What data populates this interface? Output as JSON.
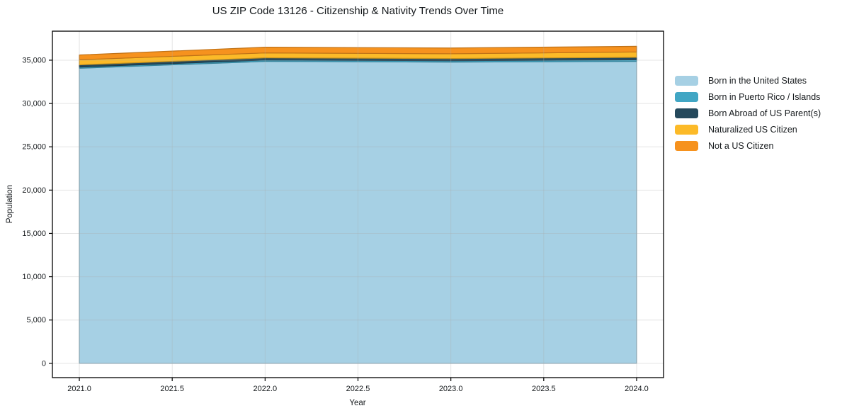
{
  "chart_data": {
    "type": "area",
    "stacked": true,
    "title": "US ZIP Code 13126 - Citizenship & Nativity Trends Over Time",
    "xlabel": "Year",
    "ylabel": "Population",
    "x": [
      2021,
      2022,
      2023,
      2024
    ],
    "series": [
      {
        "name": "Born in the United States",
        "color": "#a6d0e4",
        "values": [
          34070,
          34860,
          34780,
          34860
        ]
      },
      {
        "name": "Born in Puerto Rico / Islands",
        "color": "#41a6c4",
        "values": [
          140,
          160,
          160,
          190
        ]
      },
      {
        "name": "Born Abroad of US Parent(s)",
        "color": "#25495c",
        "values": [
          250,
          250,
          250,
          280
        ]
      },
      {
        "name": "Naturalized US Citizen",
        "color": "#fcba28",
        "values": [
          590,
          570,
          550,
          620
        ]
      },
      {
        "name": "Not a US Citizen",
        "color": "#f6921e",
        "values": [
          550,
          660,
          670,
          650
        ]
      }
    ],
    "x_ticks": [
      2021.0,
      2021.5,
      2022.0,
      2022.5,
      2023.0,
      2023.5,
      2024.0
    ],
    "x_tick_labels": [
      "2021.0",
      "2021.5",
      "2022.0",
      "2022.5",
      "2023.0",
      "2023.5",
      "2024.0"
    ],
    "y_ticks": [
      0,
      5000,
      10000,
      15000,
      20000,
      25000,
      30000,
      35000
    ],
    "y_tick_labels": [
      "0",
      "5,000",
      "10,000",
      "15,000",
      "20,000",
      "25,000",
      "30,000",
      "35,000"
    ],
    "xlim": [
      2020.855,
      2024.145
    ],
    "ylim": [
      -1650,
      38350
    ],
    "grid": true,
    "legend_position": "right",
    "style": {
      "background": "#ffffff",
      "frame_color": "#000000",
      "grid_color": "#d9d9d9",
      "text_color": "#15191c"
    }
  }
}
